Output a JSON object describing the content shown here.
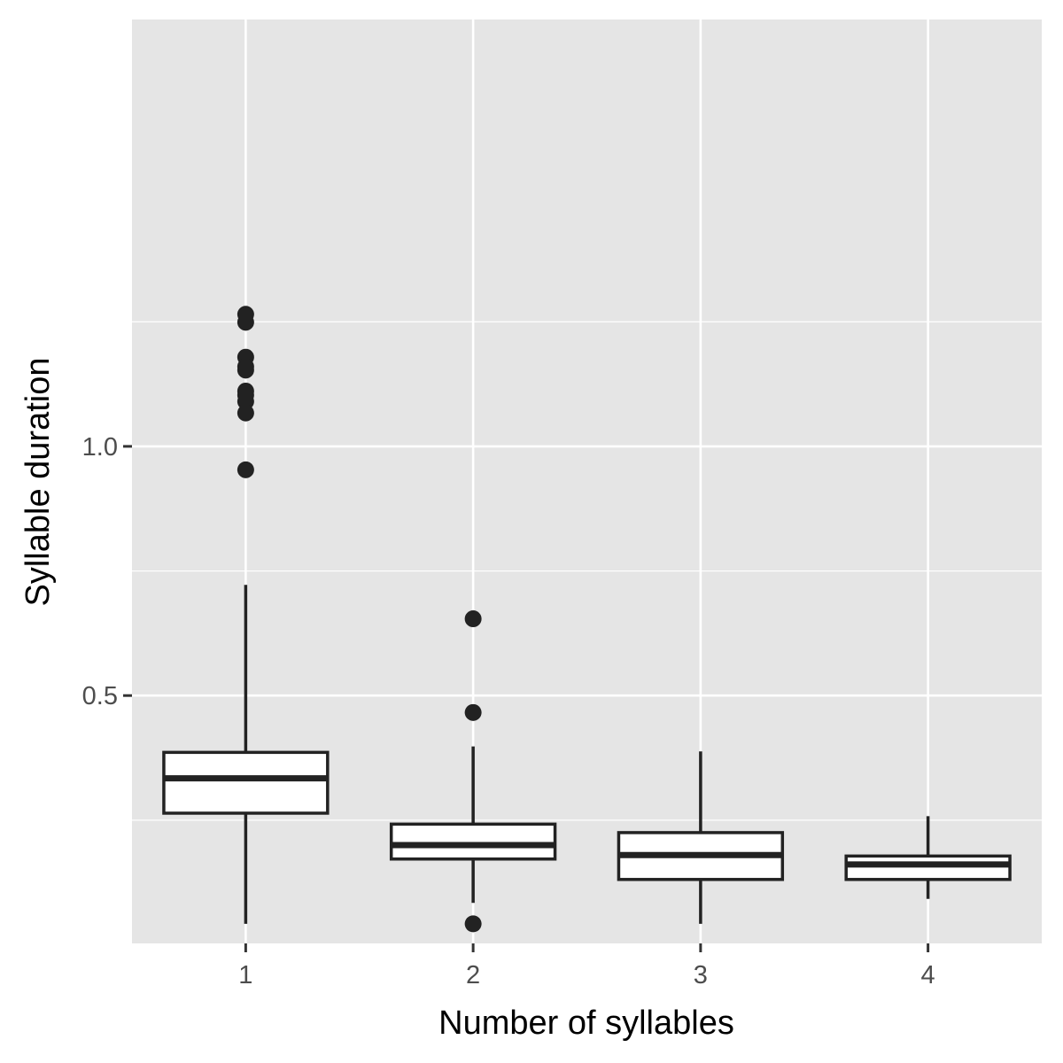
{
  "chart_data": {
    "type": "boxplot",
    "title": "",
    "xlabel": "Number of syllables",
    "ylabel": "Syllable duration",
    "categories": [
      "1",
      "2",
      "3",
      "4"
    ],
    "y_ticks": [
      {
        "value": 0.5,
        "label": "0.5"
      },
      {
        "value": 1.0,
        "label": "1.0"
      }
    ],
    "ylim": [
      -0.0,
      1.29
    ],
    "grid": true,
    "boxes": [
      {
        "category": "1",
        "whisker_low": 0.042,
        "q1": 0.264,
        "median": 0.334,
        "q3": 0.386,
        "whisker_high": 0.722,
        "outliers": [
          1.265,
          1.249,
          1.179,
          1.16,
          1.153,
          1.111,
          1.103,
          1.09,
          1.067,
          0.953
        ]
      },
      {
        "category": "2",
        "whisker_low": 0.084,
        "q1": 0.172,
        "median": 0.2,
        "q3": 0.242,
        "whisker_high": 0.398,
        "outliers": [
          0.654,
          0.466,
          0.042
        ]
      },
      {
        "category": "3",
        "whisker_low": 0.042,
        "q1": 0.131,
        "median": 0.18,
        "q3": 0.225,
        "whisker_high": 0.388,
        "outliers": []
      },
      {
        "category": "4",
        "whisker_low": 0.092,
        "q1": 0.131,
        "median": 0.161,
        "q3": 0.178,
        "whisker_high": 0.258,
        "outliers": []
      }
    ]
  },
  "colors": {
    "panel": "#e5e5e5",
    "grid": "#ffffff",
    "box_fill": "#ffffff",
    "box_stroke": "#222222",
    "tick": "#333333",
    "tick_label": "#4d4d4d",
    "axis_title": "#000000"
  }
}
